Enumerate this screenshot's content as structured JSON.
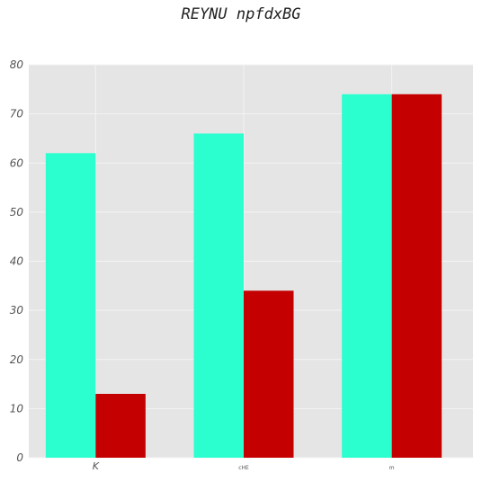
{
  "chart_data": {
    "type": "bar",
    "title": "REYNU npfdxBG",
    "xlabel": "",
    "ylabel": "",
    "categories": [
      "K",
      "cHE",
      "m"
    ],
    "series": [
      {
        "values": [
          62,
          66,
          74
        ],
        "color": "#2bffcf"
      },
      {
        "values": [
          13,
          34,
          74
        ],
        "color": "#c40000"
      }
    ],
    "ylim": [
      0,
      80
    ],
    "yticks": [
      0,
      10,
      20,
      30,
      40,
      50,
      60,
      70,
      80
    ],
    "grid": true,
    "style": {
      "background": "#e5e5e5",
      "grid_color": "#f4f4f4"
    }
  }
}
